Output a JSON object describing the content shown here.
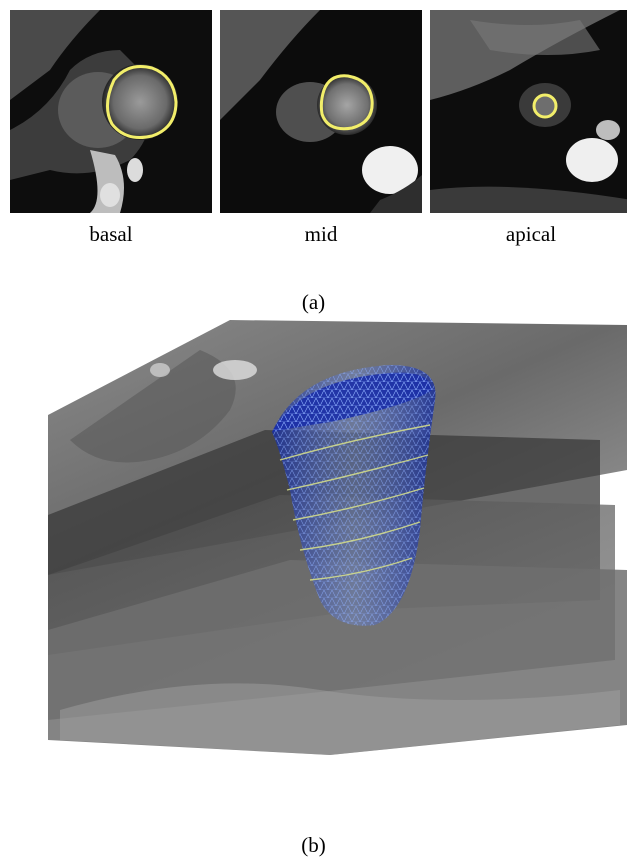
{
  "panels": [
    {
      "id": "basal",
      "caption": "basal"
    },
    {
      "id": "mid",
      "caption": "mid"
    },
    {
      "id": "apical",
      "caption": "apical"
    }
  ],
  "subfigure_a_label": "(a)",
  "subfigure_b_label": "(b)",
  "colors": {
    "contour": "#f2ee6a",
    "mesh": "#2d46c8",
    "mesh_light": "#7d9cf0",
    "plane": "#2a2a2a"
  }
}
